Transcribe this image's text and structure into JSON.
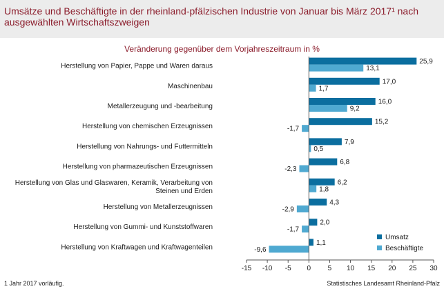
{
  "header": {
    "title": "Umsätze und Beschäftigte in der rheinland-pfälzischen Industrie von Januar bis März 2017¹ nach ausgewählten Wirtschaftszweigen"
  },
  "footer": {
    "footnote": "1 Jahr 2017 vorläufig.",
    "source": "Statistisches Landesamt Rheinland-Pfalz"
  },
  "colors": {
    "umsatz": "#0b6e9f",
    "beschaeftigte": "#4fa9d1",
    "title": "#8b1c2b"
  },
  "chart_data": {
    "type": "bar",
    "orientation": "horizontal",
    "title": "Veränderung gegenüber dem Vorjahreszeitraum in %",
    "categories": [
      [
        "Herstellung von Papier, Pappe und Waren daraus"
      ],
      [
        "Maschinenbau"
      ],
      [
        "Metallerzeugung und -bearbeitung"
      ],
      [
        "Herstellung von chemischen Erzeugnissen"
      ],
      [
        "Herstellung von Nahrungs- und Futtermitteln"
      ],
      [
        "Herstellung von pharmazeutischen Erzeugnissen"
      ],
      [
        "Herstellung von Glas und Glaswaren, Keramik, Verarbeitung von",
        "Steinen und Erden"
      ],
      [
        "Herstellung von Metallerzeugnissen"
      ],
      [
        "Herstellung von Gummi- und Kunststoffwaren"
      ],
      [
        "Herstellung von Kraftwagen und Kraftwagenteilen"
      ]
    ],
    "series": [
      {
        "name": "Umsatz",
        "values": [
          25.9,
          17.0,
          16.0,
          15.2,
          7.9,
          6.8,
          6.2,
          4.3,
          2.0,
          1.1
        ],
        "labels": [
          "25,9",
          "17,0",
          "16,0",
          "15,2",
          "7,9",
          "6,8",
          "6,2",
          "4,3",
          "2,0",
          "1,1"
        ]
      },
      {
        "name": "Beschäftigte",
        "values": [
          13.1,
          1.7,
          9.2,
          -1.7,
          0.5,
          -2.3,
          1.8,
          -2.9,
          -1.7,
          -9.6
        ],
        "labels": [
          "13,1",
          "1,7",
          "9,2",
          "-1,7",
          "0,5",
          "-2,3",
          "1,8",
          "-2,9",
          "-1,7",
          "-9,6"
        ]
      }
    ],
    "xlim": [
      -15,
      30
    ],
    "xticks": [
      -15,
      -10,
      -5,
      0,
      5,
      10,
      15,
      20,
      25,
      30
    ],
    "grid": false,
    "legend_position": "bottom-right"
  }
}
